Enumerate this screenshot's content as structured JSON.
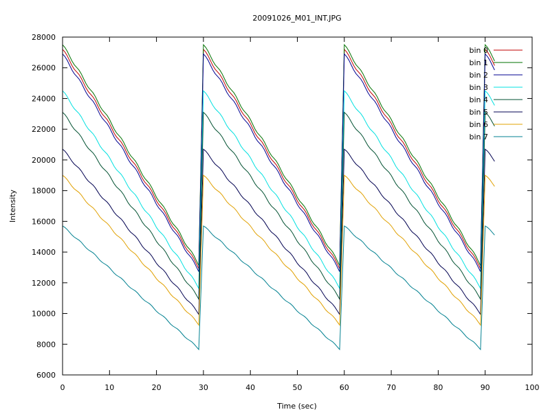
{
  "chart_data": {
    "type": "line",
    "title": "20091026_M01_INT.JPG",
    "xlabel": "Time (sec)",
    "ylabel": "Intensity",
    "xlim": [
      0,
      100
    ],
    "ylim": [
      6000,
      28000
    ],
    "xticks": [
      0,
      10,
      20,
      30,
      40,
      50,
      60,
      70,
      80,
      90,
      100
    ],
    "yticks": [
      6000,
      8000,
      10000,
      12000,
      14000,
      16000,
      18000,
      20000,
      22000,
      24000,
      26000,
      28000
    ],
    "grid": false,
    "legend_position": "top-right",
    "cycle": {
      "period": 30,
      "first_start": 0,
      "cycle_end": 29,
      "data_end": 92
    },
    "series": [
      {
        "name": "bin 0",
        "color": "#c00000",
        "start": 27200,
        "end": 13000
      },
      {
        "name": "bin 1",
        "color": "#007000",
        "start": 27500,
        "end": 13200
      },
      {
        "name": "bin 2",
        "color": "#000090",
        "start": 26900,
        "end": 12800
      },
      {
        "name": "bin 3",
        "color": "#00e0e0",
        "start": 24500,
        "end": 11700
      },
      {
        "name": "bin 4",
        "color": "#005030",
        "start": 23100,
        "end": 11000
      },
      {
        "name": "bin 5",
        "color": "#000050",
        "start": 20700,
        "end": 10000
      },
      {
        "name": "bin 6",
        "color": "#e0a000",
        "start": 19000,
        "end": 9300
      },
      {
        "name": "bin 7",
        "color": "#008090",
        "start": 15700,
        "end": 7700
      }
    ]
  }
}
